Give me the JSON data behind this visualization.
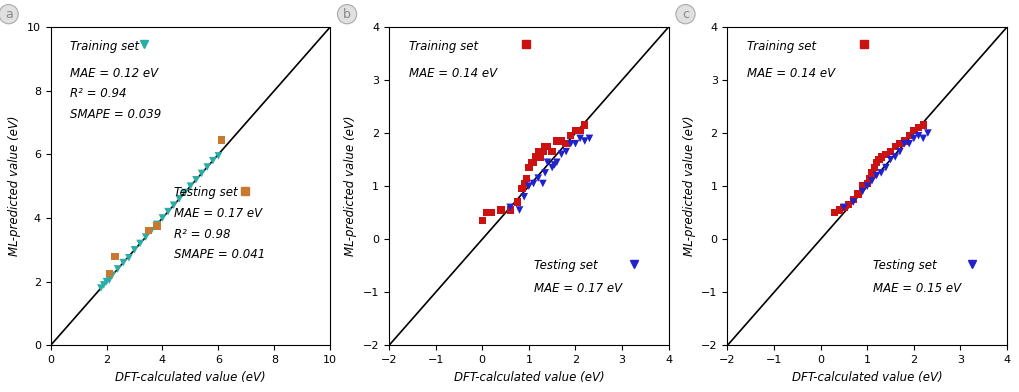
{
  "panel_a": {
    "train_x": [
      1.8,
      1.9,
      2.0,
      2.1,
      2.2,
      2.4,
      2.6,
      2.8,
      3.0,
      3.2,
      3.4,
      3.6,
      3.8,
      4.0,
      4.2,
      4.4,
      4.6,
      4.8,
      5.0,
      5.2,
      5.4,
      5.6,
      5.8,
      6.0
    ],
    "train_y": [
      1.8,
      1.9,
      2.0,
      2.05,
      2.2,
      2.4,
      2.6,
      2.75,
      3.0,
      3.2,
      3.4,
      3.6,
      3.8,
      4.0,
      4.2,
      4.4,
      4.6,
      4.8,
      5.0,
      5.2,
      5.4,
      5.6,
      5.8,
      5.95
    ],
    "test_x": [
      2.1,
      2.3,
      3.5,
      3.8,
      6.1
    ],
    "test_y": [
      2.25,
      2.8,
      3.6,
      3.75,
      6.45
    ],
    "train_color": "#2aada6",
    "test_color": "#c87930",
    "xlim": [
      0,
      10
    ],
    "ylim": [
      0,
      10
    ],
    "xticks": [
      0,
      2,
      4,
      6,
      8,
      10
    ],
    "yticks": [
      0,
      2,
      4,
      6,
      8,
      10
    ],
    "xlabel": "DFT-calculated value (eV)",
    "ylabel": "ML-predicted value (eV)",
    "train_label": "Training set",
    "test_label": "Testing set",
    "train_stats_line1": "MAE = 0.12 eV",
    "train_stats_line2": "R² = 0.94",
    "train_stats_line3": "SMAPE = 0.039",
    "test_stats_line1": "MAE = 0.17 eV",
    "test_stats_line2": "R² = 0.98",
    "test_stats_line3": "SMAPE = 0.041",
    "panel_label": "a"
  },
  "panel_b": {
    "train_x": [
      0.0,
      0.1,
      0.2,
      0.4,
      0.6,
      0.75,
      0.85,
      0.9,
      0.95,
      1.0,
      1.05,
      1.1,
      1.15,
      1.2,
      1.25,
      1.3,
      1.35,
      1.4,
      1.5,
      1.6,
      1.7,
      1.8,
      1.9,
      2.0,
      2.1,
      2.2
    ],
    "train_y": [
      0.35,
      0.5,
      0.5,
      0.55,
      0.55,
      0.7,
      0.95,
      1.05,
      1.15,
      1.35,
      1.45,
      1.45,
      1.55,
      1.65,
      1.55,
      1.65,
      1.75,
      1.75,
      1.65,
      1.85,
      1.85,
      1.8,
      1.95,
      2.05,
      2.05,
      2.15
    ],
    "test_x": [
      0.6,
      0.8,
      0.9,
      1.0,
      1.1,
      1.2,
      1.3,
      1.35,
      1.4,
      1.5,
      1.55,
      1.6,
      1.7,
      1.8,
      1.9,
      2.0,
      2.1,
      2.2,
      2.3
    ],
    "test_y": [
      0.6,
      0.55,
      0.8,
      1.0,
      1.05,
      1.15,
      1.05,
      1.25,
      1.45,
      1.35,
      1.4,
      1.45,
      1.6,
      1.65,
      1.8,
      1.8,
      1.9,
      1.85,
      1.9
    ],
    "train_color": "#cc1111",
    "test_color": "#2222cc",
    "xlim": [
      -2,
      4
    ],
    "ylim": [
      -2,
      4
    ],
    "xticks": [
      -2,
      -1,
      0,
      1,
      2,
      3,
      4
    ],
    "yticks": [
      -2,
      -1,
      0,
      1,
      2,
      3,
      4
    ],
    "xlabel": "DFT-calculated value (eV)",
    "ylabel": "ML-predicted value (eV)",
    "train_label": "Training set",
    "test_label": "Testing set",
    "train_stats_line1": "MAE = 0.14 eV",
    "test_stats_line1": "MAE = 0.17 eV",
    "panel_label": "b"
  },
  "panel_c": {
    "train_x": [
      0.3,
      0.4,
      0.5,
      0.6,
      0.7,
      0.8,
      0.9,
      1.0,
      1.05,
      1.1,
      1.15,
      1.2,
      1.25,
      1.3,
      1.4,
      1.5,
      1.6,
      1.7,
      1.8,
      1.9,
      2.0,
      2.1,
      2.2
    ],
    "train_y": [
      0.5,
      0.55,
      0.6,
      0.65,
      0.75,
      0.85,
      1.0,
      1.05,
      1.15,
      1.25,
      1.35,
      1.45,
      1.5,
      1.55,
      1.6,
      1.65,
      1.75,
      1.8,
      1.85,
      1.95,
      2.05,
      2.1,
      2.15
    ],
    "test_x": [
      0.5,
      0.7,
      0.9,
      1.0,
      1.1,
      1.2,
      1.3,
      1.4,
      1.5,
      1.6,
      1.7,
      1.8,
      1.9,
      2.0,
      2.1,
      2.2,
      2.3
    ],
    "test_y": [
      0.6,
      0.7,
      0.9,
      1.0,
      1.1,
      1.2,
      1.25,
      1.35,
      1.5,
      1.55,
      1.65,
      1.8,
      1.8,
      1.9,
      1.95,
      1.9,
      2.0
    ],
    "train_color": "#cc1111",
    "test_color": "#2222cc",
    "xlim": [
      -2,
      4
    ],
    "ylim": [
      -2,
      4
    ],
    "xticks": [
      -2,
      -1,
      0,
      1,
      2,
      3,
      4
    ],
    "yticks": [
      -2,
      -1,
      0,
      1,
      2,
      3,
      4
    ],
    "xlabel": "DFT-calculated value (eV)",
    "ylabel": "ML-predicted value (eV)",
    "train_label": "Training set",
    "test_label": "Testing set",
    "train_stats_line1": "MAE = 0.14 eV",
    "test_stats_line1": "MAE = 0.15 eV",
    "panel_label": "c"
  },
  "fig_background": "#ffffff"
}
